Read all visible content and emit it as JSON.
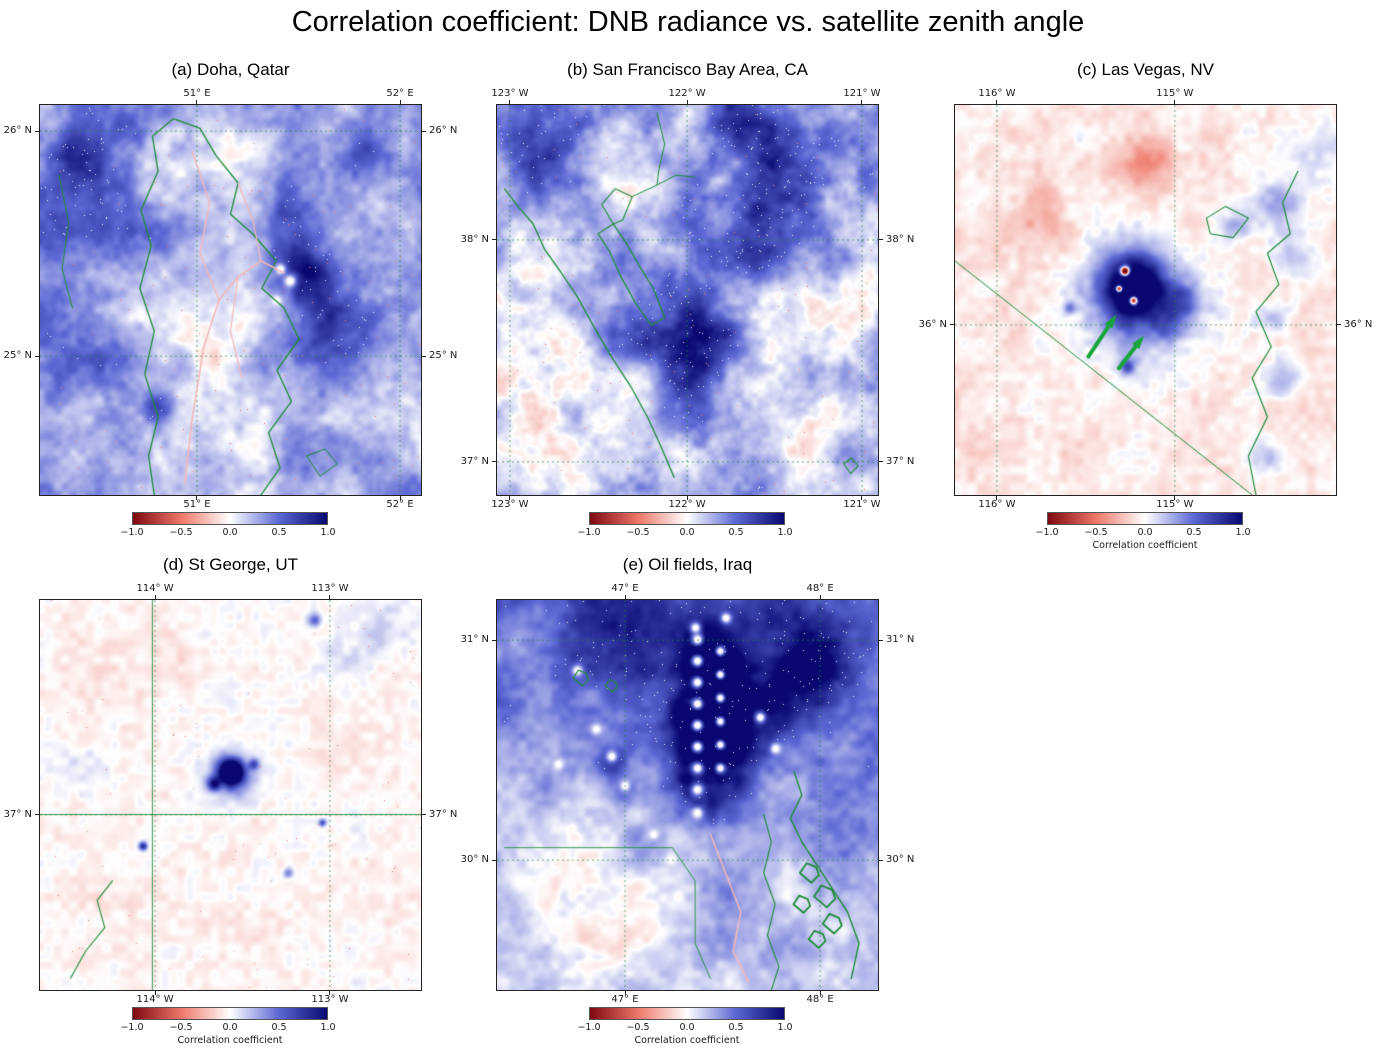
{
  "figure": {
    "title": "Correlation coefficient: DNB radiance vs. satellite zenith angle"
  },
  "colorbar": {
    "tick_labels": [
      "−1.0",
      "−0.5",
      "0.0",
      "0.5",
      "1.0"
    ],
    "label": "Correlation  coefficient",
    "colormap_stops": [
      "#7f0810",
      "#ee7869",
      "#ffffff",
      "#5c68d4",
      "#080870"
    ]
  },
  "panels": [
    {
      "key": "a",
      "title": "(a) Doha, Qatar",
      "x_ticks": [
        {
          "label": "51° E",
          "pos": 0.412
        },
        {
          "label": "52° E",
          "pos": 0.945
        }
      ],
      "y_ticks": [
        {
          "label": "26° N",
          "pos": 0.067
        },
        {
          "label": "25° N",
          "pos": 0.644
        }
      ]
    },
    {
      "key": "b",
      "title": "(b) San Francisco Bay Area, CA",
      "x_ticks": [
        {
          "label": "123° W",
          "pos": 0.034
        },
        {
          "label": "122° W",
          "pos": 0.499
        },
        {
          "label": "121° W",
          "pos": 0.958
        }
      ],
      "y_ticks": [
        {
          "label": "38° N",
          "pos": 0.346
        },
        {
          "label": "37° N",
          "pos": 0.915
        }
      ]
    },
    {
      "key": "c",
      "title": "(c) Las Vegas, NV",
      "x_ticks": [
        {
          "label": "116° W",
          "pos": 0.11
        },
        {
          "label": "115° W",
          "pos": 0.577
        }
      ],
      "y_ticks": [
        {
          "label": "36° N",
          "pos": 0.564
        }
      ]
    },
    {
      "key": "d",
      "title": "(d) St George, UT",
      "x_ticks": [
        {
          "label": "114° W",
          "pos": 0.302
        },
        {
          "label": "113° W",
          "pos": 0.761
        }
      ],
      "y_ticks": [
        {
          "label": "37° N",
          "pos": 0.551
        }
      ]
    },
    {
      "key": "e",
      "title": "(e) Oil fields, Iraq",
      "x_ticks": [
        {
          "label": "47° E",
          "pos": 0.336
        },
        {
          "label": "48° E",
          "pos": 0.848
        }
      ],
      "y_ticks": [
        {
          "label": "31° N",
          "pos": 0.103
        },
        {
          "label": "30° N",
          "pos": 0.667
        }
      ]
    }
  ],
  "chart_data": [
    {
      "type": "heatmap",
      "title": "(a) Doha, Qatar",
      "x_tick_labels": [
        "51° E",
        "52° E"
      ],
      "y_tick_labels": [
        "26° N",
        "25° N"
      ],
      "value_range": [
        -1,
        1
      ],
      "colorbar_ticks": [
        -1.0,
        -0.5,
        0.0,
        0.5,
        1.0
      ],
      "colormap": "diverging red-white-blue (negative=red, positive=blue)",
      "overlays": "green coastline of the Qatar peninsula; thin pink near-zero traces along highways and Doha urban grid",
      "summary": "Correlation positive (blue) nearly everywhere: deep blue ~0.8-1.0 over the Gulf west of Qatar, at the northern tip and along the east coast around Doha; pale lavender ~0.1-0.3 over the central peninsula; thin pink/near-zero lines follow major roads and the city core."
    },
    {
      "type": "heatmap",
      "title": "(b) San Francisco Bay Area, CA",
      "x_tick_labels": [
        "123° W",
        "122° W",
        "121° W"
      ],
      "y_tick_labels": [
        "38° N",
        "37° N"
      ],
      "value_range": [
        -1,
        1
      ],
      "colorbar_ticks": [
        -1.0,
        -0.5,
        0.0,
        0.5,
        1.0
      ],
      "colormap": "diverging red-white-blue",
      "overlays": "green Pacific coastline and San Francisco Bay outline with delta rivers",
      "summary": "Mottled positive field: dark-blue clusters ~0.7-1.0 over urban areas (East Bay, South Bay, upper-right valley); whiter near-zero patches over coastal ranges and ocean; scattered single red (negative) pixels within cities."
    },
    {
      "type": "heatmap",
      "title": "(c) Las Vegas, NV",
      "x_tick_labels": [
        "116° W",
        "115° W"
      ],
      "y_tick_labels": [
        "36° N"
      ],
      "value_range": [
        -1,
        1
      ],
      "colorbar_ticks": [
        -1.0,
        -0.5,
        0.0,
        0.5,
        1.0
      ],
      "colorbar_label": "Correlation coefficient",
      "colormap": "diverging red-white-blue",
      "overlays": "green diagonal NV/CA state border, Colorado River line, lake outline; two green arrows point at red pixels inside the Las Vegas urban core",
      "summary": "Weakly negative pale-pink background ~ -0.1 to -0.2 over desert; strong dark-blue core ~0.8-1.0 over the Las Vegas metro with a few red pixels at the brightest district (marked by green arrows); light-blue fringe around the city; faint red mottling to the north and west; bluish traces along the river."
    },
    {
      "type": "heatmap",
      "title": "(d) St George, UT",
      "x_tick_labels": [
        "114° W",
        "113° W"
      ],
      "y_tick_labels": [
        "37° N"
      ],
      "value_range": [
        -1,
        1
      ],
      "colorbar_ticks": [
        -1.0,
        -0.5,
        0.0,
        0.5,
        1.0
      ],
      "colorbar_label": "Correlation coefficient",
      "colormap": "diverging red-white-blue",
      "overlays": "green state-border lines near 114° W (vertical) and 37° N (horizontal); short river trace lower left",
      "summary": "Mostly near zero (white with faint pink mottle); one compact dark-blue spot ~0.8-1.0 over St George with small light-blue halo; a few tiny blue specks at outlying towns; faint light-blue patches in the upper right."
    },
    {
      "type": "heatmap",
      "title": "(e) Oil fields, Iraq",
      "x_tick_labels": [
        "47° E",
        "48° E"
      ],
      "y_tick_labels": [
        "31° N",
        "30° N"
      ],
      "value_range": [
        -1,
        1
      ],
      "colorbar_ticks": [
        -1.0,
        -0.5,
        0.0,
        0.5,
        1.0
      ],
      "colorbar_label": "Correlation coefficient",
      "colormap": "diverging red-white-blue",
      "overlays": "green border line, rivers and marsh loops near Basra (right side); pink near-zero road trace lower right",
      "summary": "Broad positive (blue) field ~0.3-0.7; vertical chains of dark-blue patches with bright white (near-zero) cores mark gas-flare oil fields; darkest blue band along the top; paler lavender ~0.1-0.3 across the south; rivers and marshes outlined in green."
    }
  ]
}
